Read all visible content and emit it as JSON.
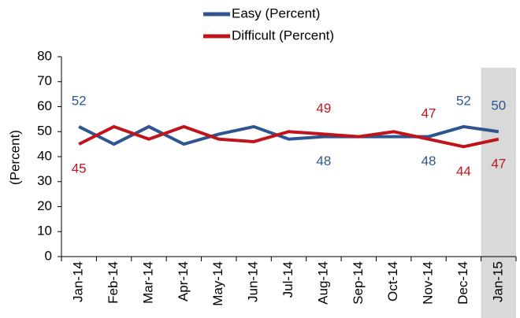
{
  "chart_data": {
    "type": "line",
    "y_label": "(Percent)",
    "categories": [
      "Jan-14",
      "Feb-14",
      "Mar-14",
      "Apr-14",
      "May-14",
      "Jun-14",
      "Jul-14",
      "Aug-14",
      "Sep-14",
      "Oct-14",
      "Nov-14",
      "Dec-14",
      "Jan-15"
    ],
    "series": [
      {
        "name": "Easy (Percent)",
        "color": "#2e5590",
        "values": [
          52,
          45,
          52,
          45,
          49,
          52,
          47,
          48,
          48,
          48,
          48,
          52,
          50
        ],
        "value_labels": [
          "52",
          null,
          null,
          null,
          null,
          null,
          null,
          "48",
          null,
          null,
          "48",
          "52",
          "50"
        ]
      },
      {
        "name": "Difficult (Percent)",
        "color": "#c0141c",
        "values": [
          45,
          52,
          47,
          52,
          47,
          46,
          50,
          49,
          48,
          50,
          47,
          44,
          47
        ],
        "value_labels": [
          "45",
          null,
          null,
          null,
          null,
          null,
          null,
          "49",
          null,
          null,
          "47",
          "44",
          "47"
        ]
      }
    ],
    "ylim": [
      0,
      80
    ],
    "yticks": [
      0,
      10,
      20,
      30,
      40,
      50,
      60,
      70,
      80
    ]
  }
}
